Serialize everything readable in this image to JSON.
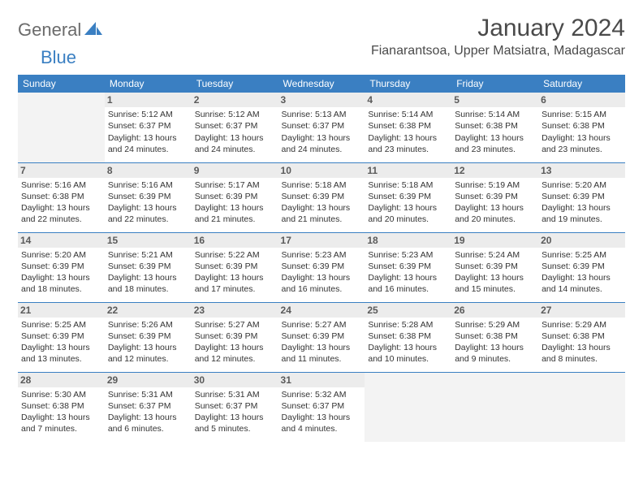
{
  "brand": {
    "part1": "General",
    "part2": "Blue"
  },
  "title": "January 2024",
  "location": "Fianarantsoa, Upper Matsiatra, Madagascar",
  "colors": {
    "accent": "#3a7fc2",
    "header_bg": "#3a7fc2",
    "header_text": "#ffffff",
    "daynum_bg": "#ececec",
    "daynum_text": "#5a5a5a",
    "empty_bg": "#f3f3f3",
    "body_text": "#333333"
  },
  "weekdays": [
    "Sunday",
    "Monday",
    "Tuesday",
    "Wednesday",
    "Thursday",
    "Friday",
    "Saturday"
  ],
  "weeks": [
    [
      null,
      {
        "day": "1",
        "sunrise": "Sunrise: 5:12 AM",
        "sunset": "Sunset: 6:37 PM",
        "dl1": "Daylight: 13 hours",
        "dl2": "and 24 minutes."
      },
      {
        "day": "2",
        "sunrise": "Sunrise: 5:12 AM",
        "sunset": "Sunset: 6:37 PM",
        "dl1": "Daylight: 13 hours",
        "dl2": "and 24 minutes."
      },
      {
        "day": "3",
        "sunrise": "Sunrise: 5:13 AM",
        "sunset": "Sunset: 6:37 PM",
        "dl1": "Daylight: 13 hours",
        "dl2": "and 24 minutes."
      },
      {
        "day": "4",
        "sunrise": "Sunrise: 5:14 AM",
        "sunset": "Sunset: 6:38 PM",
        "dl1": "Daylight: 13 hours",
        "dl2": "and 23 minutes."
      },
      {
        "day": "5",
        "sunrise": "Sunrise: 5:14 AM",
        "sunset": "Sunset: 6:38 PM",
        "dl1": "Daylight: 13 hours",
        "dl2": "and 23 minutes."
      },
      {
        "day": "6",
        "sunrise": "Sunrise: 5:15 AM",
        "sunset": "Sunset: 6:38 PM",
        "dl1": "Daylight: 13 hours",
        "dl2": "and 23 minutes."
      }
    ],
    [
      {
        "day": "7",
        "sunrise": "Sunrise: 5:16 AM",
        "sunset": "Sunset: 6:38 PM",
        "dl1": "Daylight: 13 hours",
        "dl2": "and 22 minutes."
      },
      {
        "day": "8",
        "sunrise": "Sunrise: 5:16 AM",
        "sunset": "Sunset: 6:39 PM",
        "dl1": "Daylight: 13 hours",
        "dl2": "and 22 minutes."
      },
      {
        "day": "9",
        "sunrise": "Sunrise: 5:17 AM",
        "sunset": "Sunset: 6:39 PM",
        "dl1": "Daylight: 13 hours",
        "dl2": "and 21 minutes."
      },
      {
        "day": "10",
        "sunrise": "Sunrise: 5:18 AM",
        "sunset": "Sunset: 6:39 PM",
        "dl1": "Daylight: 13 hours",
        "dl2": "and 21 minutes."
      },
      {
        "day": "11",
        "sunrise": "Sunrise: 5:18 AM",
        "sunset": "Sunset: 6:39 PM",
        "dl1": "Daylight: 13 hours",
        "dl2": "and 20 minutes."
      },
      {
        "day": "12",
        "sunrise": "Sunrise: 5:19 AM",
        "sunset": "Sunset: 6:39 PM",
        "dl1": "Daylight: 13 hours",
        "dl2": "and 20 minutes."
      },
      {
        "day": "13",
        "sunrise": "Sunrise: 5:20 AM",
        "sunset": "Sunset: 6:39 PM",
        "dl1": "Daylight: 13 hours",
        "dl2": "and 19 minutes."
      }
    ],
    [
      {
        "day": "14",
        "sunrise": "Sunrise: 5:20 AM",
        "sunset": "Sunset: 6:39 PM",
        "dl1": "Daylight: 13 hours",
        "dl2": "and 18 minutes."
      },
      {
        "day": "15",
        "sunrise": "Sunrise: 5:21 AM",
        "sunset": "Sunset: 6:39 PM",
        "dl1": "Daylight: 13 hours",
        "dl2": "and 18 minutes."
      },
      {
        "day": "16",
        "sunrise": "Sunrise: 5:22 AM",
        "sunset": "Sunset: 6:39 PM",
        "dl1": "Daylight: 13 hours",
        "dl2": "and 17 minutes."
      },
      {
        "day": "17",
        "sunrise": "Sunrise: 5:23 AM",
        "sunset": "Sunset: 6:39 PM",
        "dl1": "Daylight: 13 hours",
        "dl2": "and 16 minutes."
      },
      {
        "day": "18",
        "sunrise": "Sunrise: 5:23 AM",
        "sunset": "Sunset: 6:39 PM",
        "dl1": "Daylight: 13 hours",
        "dl2": "and 16 minutes."
      },
      {
        "day": "19",
        "sunrise": "Sunrise: 5:24 AM",
        "sunset": "Sunset: 6:39 PM",
        "dl1": "Daylight: 13 hours",
        "dl2": "and 15 minutes."
      },
      {
        "day": "20",
        "sunrise": "Sunrise: 5:25 AM",
        "sunset": "Sunset: 6:39 PM",
        "dl1": "Daylight: 13 hours",
        "dl2": "and 14 minutes."
      }
    ],
    [
      {
        "day": "21",
        "sunrise": "Sunrise: 5:25 AM",
        "sunset": "Sunset: 6:39 PM",
        "dl1": "Daylight: 13 hours",
        "dl2": "and 13 minutes."
      },
      {
        "day": "22",
        "sunrise": "Sunrise: 5:26 AM",
        "sunset": "Sunset: 6:39 PM",
        "dl1": "Daylight: 13 hours",
        "dl2": "and 12 minutes."
      },
      {
        "day": "23",
        "sunrise": "Sunrise: 5:27 AM",
        "sunset": "Sunset: 6:39 PM",
        "dl1": "Daylight: 13 hours",
        "dl2": "and 12 minutes."
      },
      {
        "day": "24",
        "sunrise": "Sunrise: 5:27 AM",
        "sunset": "Sunset: 6:39 PM",
        "dl1": "Daylight: 13 hours",
        "dl2": "and 11 minutes."
      },
      {
        "day": "25",
        "sunrise": "Sunrise: 5:28 AM",
        "sunset": "Sunset: 6:38 PM",
        "dl1": "Daylight: 13 hours",
        "dl2": "and 10 minutes."
      },
      {
        "day": "26",
        "sunrise": "Sunrise: 5:29 AM",
        "sunset": "Sunset: 6:38 PM",
        "dl1": "Daylight: 13 hours",
        "dl2": "and 9 minutes."
      },
      {
        "day": "27",
        "sunrise": "Sunrise: 5:29 AM",
        "sunset": "Sunset: 6:38 PM",
        "dl1": "Daylight: 13 hours",
        "dl2": "and 8 minutes."
      }
    ],
    [
      {
        "day": "28",
        "sunrise": "Sunrise: 5:30 AM",
        "sunset": "Sunset: 6:38 PM",
        "dl1": "Daylight: 13 hours",
        "dl2": "and 7 minutes."
      },
      {
        "day": "29",
        "sunrise": "Sunrise: 5:31 AM",
        "sunset": "Sunset: 6:37 PM",
        "dl1": "Daylight: 13 hours",
        "dl2": "and 6 minutes."
      },
      {
        "day": "30",
        "sunrise": "Sunrise: 5:31 AM",
        "sunset": "Sunset: 6:37 PM",
        "dl1": "Daylight: 13 hours",
        "dl2": "and 5 minutes."
      },
      {
        "day": "31",
        "sunrise": "Sunrise: 5:32 AM",
        "sunset": "Sunset: 6:37 PM",
        "dl1": "Daylight: 13 hours",
        "dl2": "and 4 minutes."
      },
      null,
      null,
      null
    ]
  ]
}
